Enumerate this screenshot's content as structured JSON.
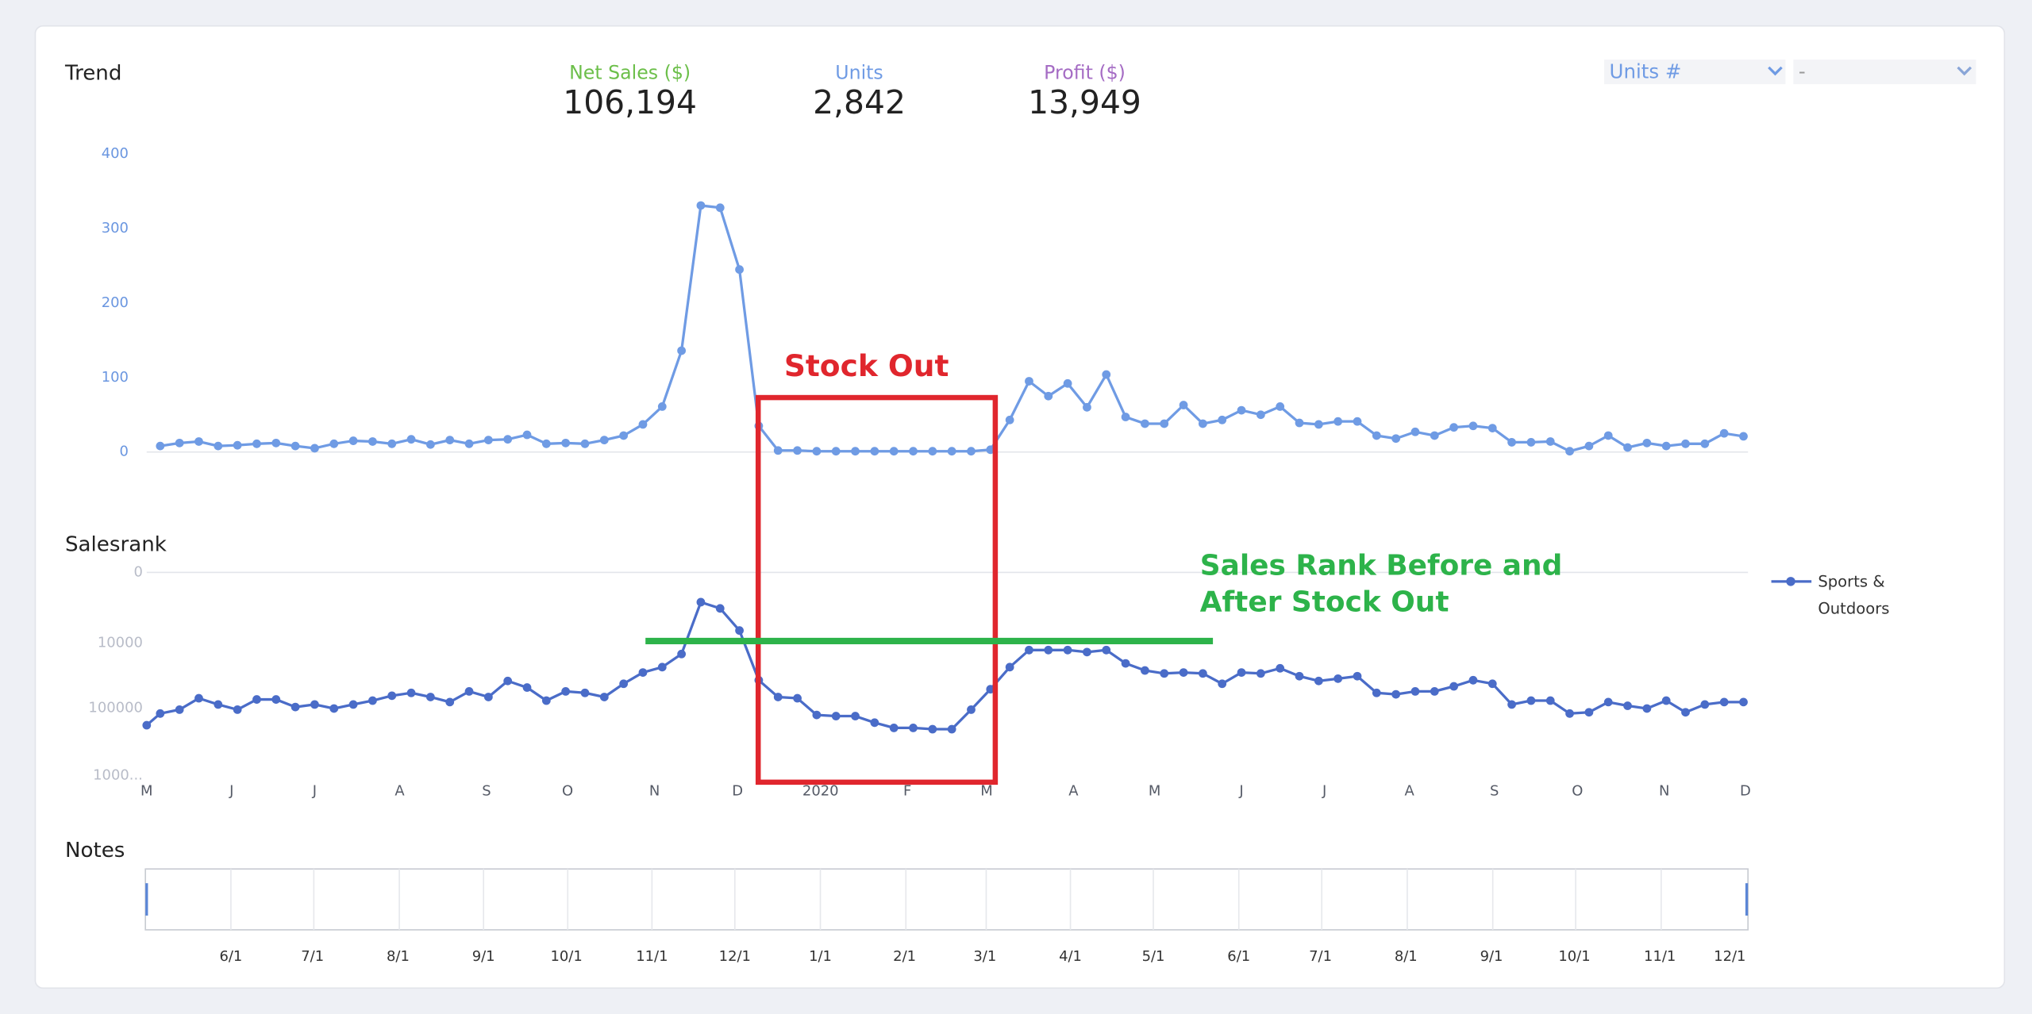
{
  "kpis": [
    {
      "label": "Net Sales ($)",
      "value": "106,194"
    },
    {
      "label": "Units",
      "value": "2,842"
    },
    {
      "label": "Profit ($)",
      "value": "13,949"
    }
  ],
  "controls": {
    "metric_select": "Units #",
    "second_select": "-"
  },
  "annotations": {
    "stock_out": "Stock Out",
    "sales_rank_note": "Sales Rank Before and After Stock Out"
  },
  "notes": {
    "title": "Notes",
    "dates": [
      "6/1",
      "7/1",
      "8/1",
      "9/1",
      "10/1",
      "11/1",
      "12/1",
      "1/1",
      "2/1",
      "3/1",
      "4/1",
      "5/1",
      "6/1",
      "7/1",
      "8/1",
      "9/1",
      "10/1",
      "11/1",
      "12/1"
    ]
  },
  "chart_data": [
    {
      "type": "line",
      "title": "Trend",
      "color": "#6f9be4",
      "xlim": [
        -0.7,
        82.1
      ],
      "ylim": [
        0,
        400
      ],
      "yticks": [
        0,
        100,
        200,
        300,
        400
      ],
      "x": [
        0,
        1,
        2,
        3,
        4,
        5,
        6,
        7,
        8,
        9,
        10,
        11,
        12,
        13,
        14,
        15,
        16,
        17,
        18,
        19,
        20,
        21,
        22,
        23,
        24,
        25,
        26,
        27,
        28,
        29,
        30,
        31,
        32,
        33,
        34,
        35,
        36,
        37,
        38,
        39,
        40,
        41,
        42,
        43,
        44,
        45,
        46,
        47,
        48,
        49,
        50,
        51,
        52,
        53,
        54,
        55,
        56,
        57,
        58,
        59,
        60,
        61,
        62,
        63,
        64,
        65,
        66,
        67,
        68,
        69,
        70,
        71,
        72,
        73,
        74,
        75,
        76,
        77,
        78,
        79,
        80,
        81,
        82
      ],
      "values": [
        8,
        12,
        14,
        8,
        9,
        11,
        12,
        8,
        5,
        11,
        15,
        14,
        11,
        17,
        10,
        16,
        11,
        16,
        17,
        23,
        11,
        12,
        11,
        16,
        22,
        37,
        61,
        136,
        331,
        328,
        245,
        35,
        2,
        2,
        1,
        1,
        1,
        1,
        1,
        1,
        1,
        1,
        1,
        3,
        43,
        95,
        75,
        92,
        60,
        104,
        47,
        38,
        38,
        63,
        38,
        43,
        56,
        50,
        61,
        39,
        37,
        41,
        41,
        22,
        18,
        27,
        22,
        33,
        35,
        32,
        13,
        13,
        14,
        1,
        8,
        22,
        6,
        12,
        8,
        11,
        11,
        25,
        21
      ]
    },
    {
      "type": "line",
      "title": "Salesrank",
      "yscale": "symlog",
      "symlog_linthresh": 1000,
      "yreverse": true,
      "xlim": [
        -0.7,
        82.1
      ],
      "xticks": [
        {
          "value": -0.7,
          "label": "M"
        },
        {
          "value": 3.7,
          "label": "J"
        },
        {
          "value": 8.0,
          "label": "J"
        },
        {
          "value": 12.4,
          "label": "A"
        },
        {
          "value": 16.9,
          "label": "S"
        },
        {
          "value": 21.1,
          "label": "O"
        },
        {
          "value": 25.6,
          "label": "N"
        },
        {
          "value": 29.9,
          "label": "D"
        },
        {
          "value": 34.2,
          "label": "2020"
        },
        {
          "value": 38.7,
          "label": "F"
        },
        {
          "value": 42.8,
          "label": "M"
        },
        {
          "value": 47.3,
          "label": "A"
        },
        {
          "value": 51.5,
          "label": "M"
        },
        {
          "value": 56.0,
          "label": "J"
        },
        {
          "value": 60.3,
          "label": "J"
        },
        {
          "value": 64.7,
          "label": "A"
        },
        {
          "value": 69.1,
          "label": "S"
        },
        {
          "value": 73.4,
          "label": "O"
        },
        {
          "value": 77.9,
          "label": "N"
        },
        {
          "value": 82.1,
          "label": "D"
        }
      ],
      "ylim": [
        0,
        1000000
      ],
      "yticks": [
        0,
        10000,
        100000,
        {
          "value": 1000000,
          "label": "1000..."
        }
      ],
      "legend": "right",
      "series": [
        {
          "name": "Sports & Outdoors",
          "color": "#4a6cc8",
          "x": [
            -0.7,
            0,
            1,
            2,
            3,
            4,
            5,
            6,
            7,
            8,
            9,
            10,
            11,
            12,
            13,
            14,
            15,
            16,
            17,
            18,
            19,
            20,
            21,
            22,
            23,
            24,
            25,
            26,
            27,
            28,
            29,
            30,
            31,
            32,
            33,
            34,
            35,
            36,
            37,
            38,
            39,
            40,
            41,
            42,
            43,
            44,
            45,
            46,
            47,
            48,
            49,
            50,
            51,
            52,
            53,
            54,
            55,
            56,
            57,
            58,
            59,
            60,
            61,
            62,
            63,
            64,
            65,
            66,
            67,
            68,
            69,
            70,
            71,
            72,
            73,
            74,
            75,
            76,
            77,
            78,
            79,
            80,
            81,
            82
          ],
          "values": [
            179000,
            120000,
            105000,
            71000,
            88000,
            105000,
            74000,
            74000,
            96000,
            88000,
            101000,
            88000,
            77000,
            65000,
            59000,
            68000,
            81000,
            56000,
            68000,
            39000,
            49000,
            77000,
            56000,
            59000,
            68000,
            43000,
            29000,
            24000,
            15000,
            1750,
            2400,
            6200,
            38000,
            68000,
            71000,
            126000,
            131000,
            131000,
            164000,
            196000,
            196000,
            205000,
            205000,
            105000,
            52000,
            24000,
            13000,
            13000,
            13000,
            14000,
            13000,
            21000,
            27000,
            30000,
            29000,
            30000,
            43000,
            29000,
            30000,
            25000,
            33000,
            39000,
            36000,
            33000,
            59000,
            62000,
            56000,
            56000,
            47000,
            38000,
            43000,
            88000,
            77000,
            77000,
            120000,
            115000,
            81000,
            92000,
            101000,
            77000,
            115000,
            88000,
            81000,
            81000
          ]
        }
      ]
    }
  ]
}
